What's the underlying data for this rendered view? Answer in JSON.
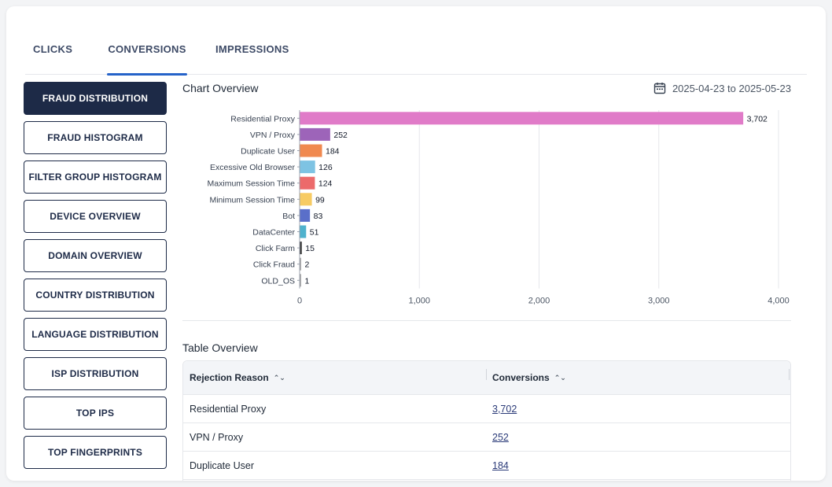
{
  "tabs": [
    {
      "label": "CLICKS",
      "active": false
    },
    {
      "label": "CONVERSIONS",
      "active": true
    },
    {
      "label": "IMPRESSIONS",
      "active": false
    }
  ],
  "sidebar": {
    "items": [
      {
        "label": "FRAUD DISTRIBUTION",
        "active": true
      },
      {
        "label": "FRAUD HISTOGRAM"
      },
      {
        "label": "FILTER GROUP HISTOGRAM"
      },
      {
        "label": "DEVICE OVERVIEW"
      },
      {
        "label": "DOMAIN OVERVIEW"
      },
      {
        "label": "COUNTRY DISTRIBUTION"
      },
      {
        "label": "LANGUAGE DISTRIBUTION"
      },
      {
        "label": "ISP DISTRIBUTION"
      },
      {
        "label": "TOP IPS"
      },
      {
        "label": "TOP FINGERPRINTS"
      }
    ]
  },
  "chart_section": {
    "title": "Chart Overview",
    "date_range": "2025-04-23 to 2025-05-23",
    "date_icon": "calendar-icon"
  },
  "chart_data": {
    "type": "bar",
    "orientation": "horizontal",
    "categories": [
      "Residential Proxy",
      "VPN / Proxy",
      "Duplicate User",
      "Excessive Old Browser",
      "Maximum Session Time",
      "Minimum Session Time",
      "Bot",
      "DataCenter",
      "Click Farm",
      "Click Fraud",
      "OLD_OS"
    ],
    "values": [
      3702,
      252,
      184,
      126,
      124,
      99,
      83,
      51,
      15,
      2,
      1
    ],
    "value_labels": [
      "3,702",
      "252",
      "184",
      "126",
      "124",
      "99",
      "83",
      "51",
      "15",
      "2",
      "1"
    ],
    "colors": [
      "#e07bc8",
      "#9d64b9",
      "#f0894f",
      "#7ec3e3",
      "#ec6a6b",
      "#f7cb63",
      "#5a6fc9",
      "#4fb2cd",
      "#3b3b3b",
      "#aaaaaa",
      "#aaaaaa"
    ],
    "xlim": [
      0,
      4000
    ],
    "xticks": [
      "0",
      "1,000",
      "2,000",
      "3,000",
      "4,000"
    ],
    "grid": true
  },
  "table_section": {
    "title": "Table Overview",
    "columns": [
      "Rejection Reason",
      "Conversions"
    ],
    "rows": [
      {
        "reason": "Residential Proxy",
        "conversions": "3,702"
      },
      {
        "reason": "VPN / Proxy",
        "conversions": "252"
      },
      {
        "reason": "Duplicate User",
        "conversions": "184"
      }
    ],
    "sort_icon": "sort-icon"
  }
}
